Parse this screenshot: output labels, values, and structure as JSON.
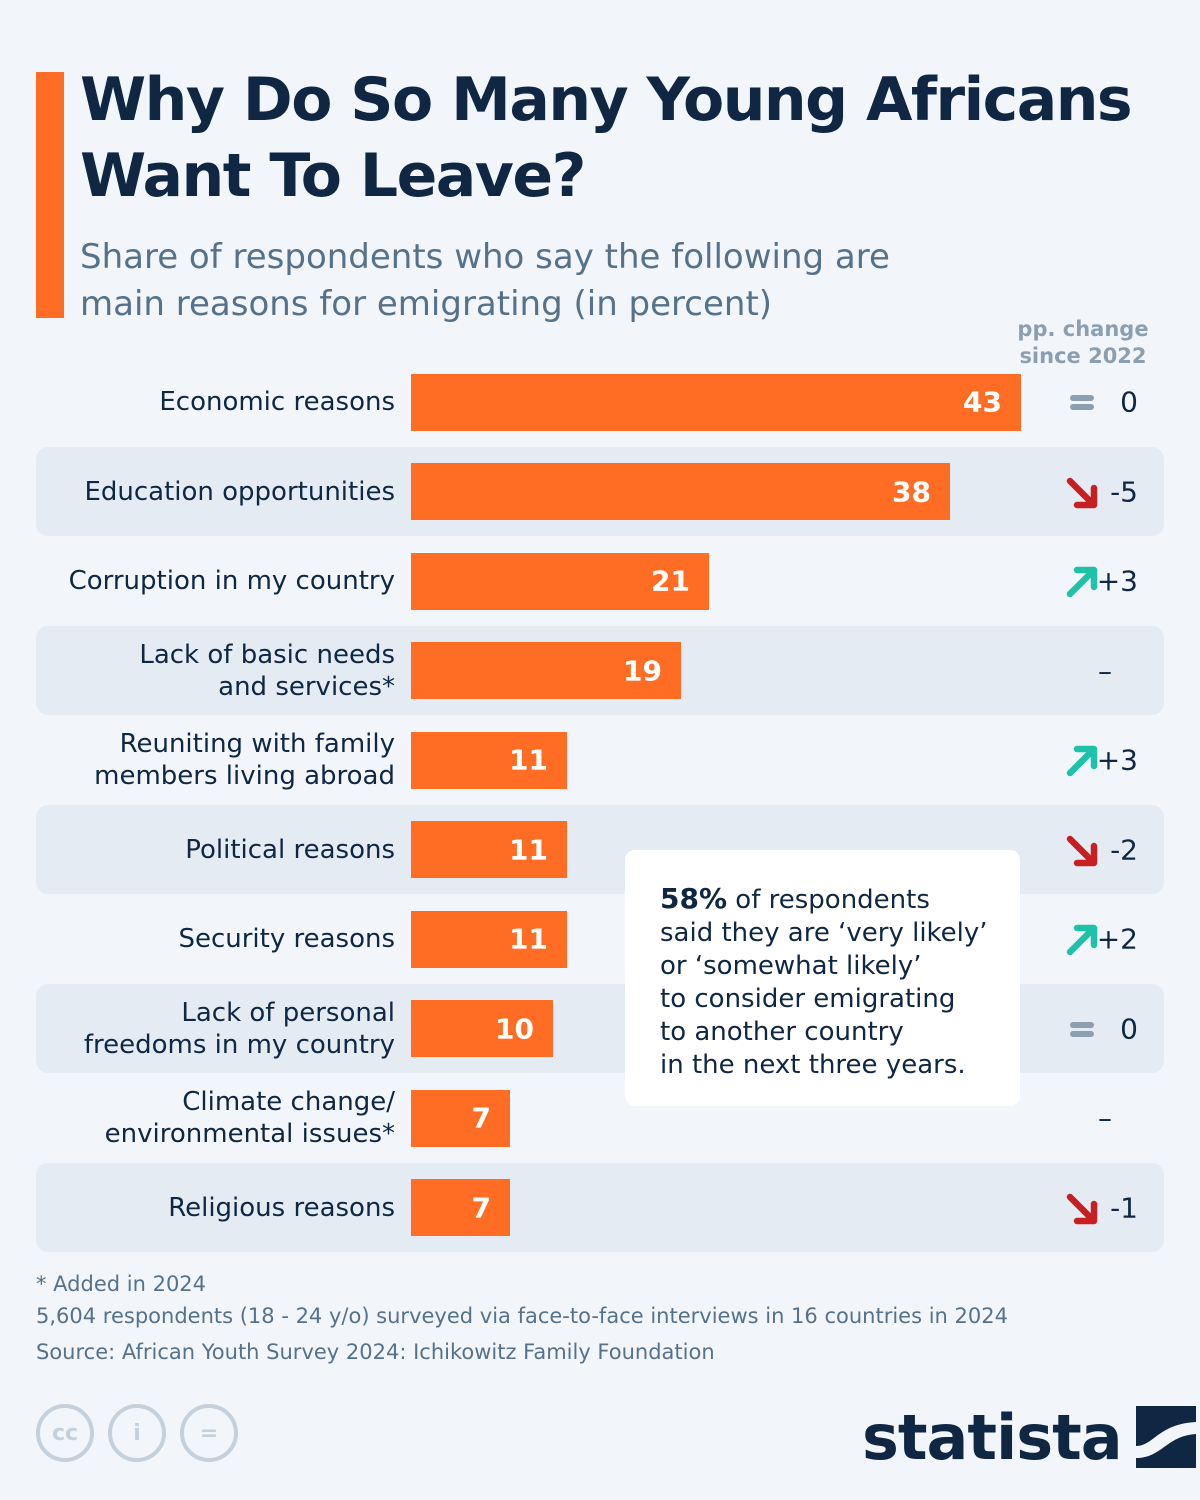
{
  "title_lines": [
    "Why Do So Many Young Africans",
    "Want To Leave?"
  ],
  "subtitle_lines": [
    "Share of respondents who say the following are",
    "main reasons for emigrating (in percent)"
  ],
  "pp_header_lines": [
    "pp. change",
    "since 2022"
  ],
  "colors": {
    "accent": "#ff6d24",
    "bar": "#ff6d24",
    "up": "#1ec2a9",
    "down": "#c81f23",
    "same": "#8c9fb0",
    "text_dark": "#0f2742",
    "text_muted": "#56718a"
  },
  "chart_data": {
    "type": "bar",
    "orientation": "horizontal",
    "title": "Why Do So Many Young Africans Want To Leave?",
    "subtitle": "Share of respondents who say the following are main reasons for emigrating (in percent)",
    "xlim": [
      0,
      43
    ],
    "categories": [
      {
        "lines": [
          "Economic reasons"
        ],
        "value": 43,
        "change": "0",
        "trend": "same"
      },
      {
        "lines": [
          "Education opportunities"
        ],
        "value": 38,
        "change": "-5",
        "trend": "down"
      },
      {
        "lines": [
          "Corruption in my country"
        ],
        "value": 21,
        "change": "+3",
        "trend": "up"
      },
      {
        "lines": [
          "Lack of basic needs",
          "and services*"
        ],
        "value": 19,
        "change": "–",
        "trend": "none"
      },
      {
        "lines": [
          "Reuniting with family",
          "members living abroad"
        ],
        "value": 11,
        "change": "+3",
        "trend": "up"
      },
      {
        "lines": [
          "Political reasons"
        ],
        "value": 11,
        "change": "-2",
        "trend": "down"
      },
      {
        "lines": [
          "Security reasons"
        ],
        "value": 11,
        "change": "+2",
        "trend": "up"
      },
      {
        "lines": [
          "Lack of personal",
          "freedoms in my country"
        ],
        "value": 10,
        "change": "0",
        "trend": "same"
      },
      {
        "lines": [
          "Climate change/",
          "environmental issues*"
        ],
        "value": 7,
        "change": "–",
        "trend": "none"
      },
      {
        "lines": [
          "Religious reasons"
        ],
        "value": 7,
        "change": "-1",
        "trend": "down"
      }
    ]
  },
  "callout": {
    "highlight": "58%",
    "lines": [
      "of respondents",
      "said they are ‘very likely’",
      "or ‘somewhat likely’",
      "to consider emigrating",
      "to another country",
      "in the next three years."
    ]
  },
  "footnotes": {
    "added": "* Added in 2024",
    "method": "5,604 respondents (18 - 24 y/o) surveyed via face-to-face interviews in 16 countries in 2024",
    "source": "Source: African Youth Survey 2024: Ichikowitz Family Foundation"
  },
  "license_icons": [
    "cc",
    "by",
    "nd"
  ],
  "license_labels": [
    "cc",
    "i",
    "="
  ],
  "logo": {
    "text": "statista",
    "icon": "statista-wave-icon"
  }
}
